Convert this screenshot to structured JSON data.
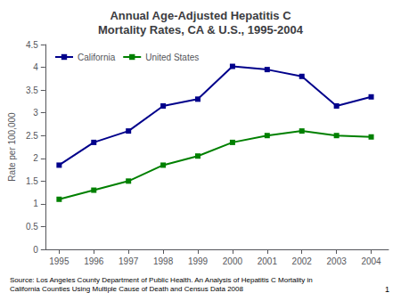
{
  "chart_data": {
    "type": "line",
    "title": "Annual Age-Adjusted Hepatitis C\nMortality Rates, CA & U.S., 1995-2004",
    "x": [
      1995,
      1996,
      1997,
      1998,
      1999,
      2000,
      2001,
      2002,
      2003,
      2004
    ],
    "series": [
      {
        "name": "California",
        "color": "#00008B",
        "marker": "square",
        "values": [
          1.85,
          2.35,
          2.6,
          3.15,
          3.3,
          4.02,
          3.95,
          3.8,
          3.15,
          3.35
        ]
      },
      {
        "name": "United States",
        "color": "#008000",
        "marker": "square",
        "values": [
          1.1,
          1.3,
          1.5,
          1.85,
          2.05,
          2.35,
          2.5,
          2.6,
          2.5,
          2.47
        ]
      }
    ],
    "xlim": [
      1994.6,
      2004.5
    ],
    "xticks": [
      1995,
      1996,
      1997,
      1998,
      1999,
      2000,
      2001,
      2002,
      2003,
      2004
    ],
    "ylim": [
      0,
      4.5
    ],
    "yticks": [
      0,
      0.5,
      1,
      1.5,
      2,
      2.5,
      3,
      3.5,
      4,
      4.5
    ],
    "ylabel": "Rate per 100,000",
    "legend": "upper left",
    "grid": false,
    "annotations": [
      "Source: Los Angeles County Department of Public Health. An Analysis of Hepatitis C Mortality in\nCalifornia Counties Using Multiple Cause of Death and Census Data 2008",
      "1"
    ]
  }
}
